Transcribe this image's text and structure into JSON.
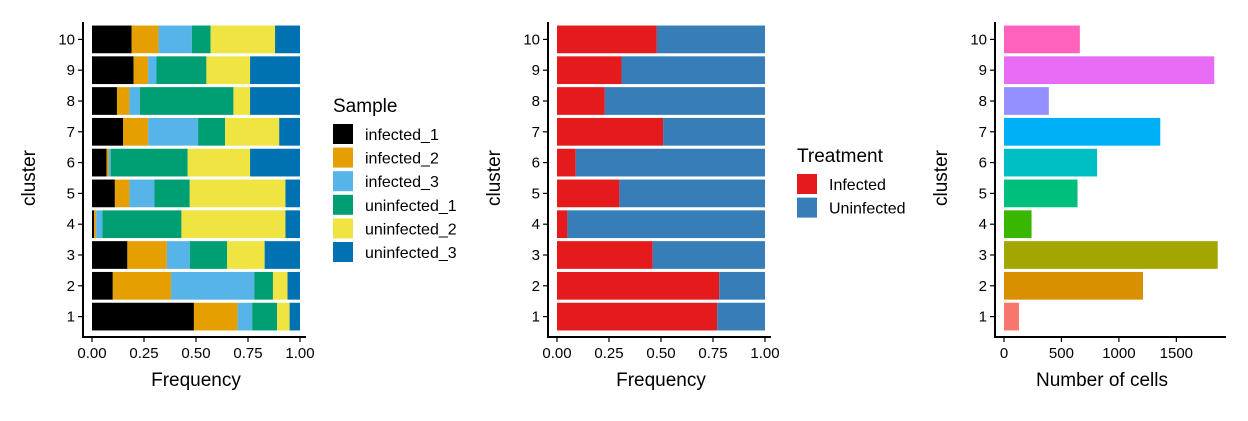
{
  "chart_data": [
    {
      "type": "bar",
      "orientation": "horizontal",
      "stacked": true,
      "normalized": true,
      "xlabel": "Frequency",
      "ylabel": "cluster",
      "xlim": [
        0,
        1
      ],
      "xticks": [
        "0.00",
        "0.25",
        "0.50",
        "0.75",
        "1.00"
      ],
      "categories": [
        "1",
        "2",
        "3",
        "4",
        "5",
        "6",
        "7",
        "8",
        "9",
        "10"
      ],
      "legend": {
        "title": "Sample",
        "position": "right"
      },
      "series": [
        {
          "name": "infected_1",
          "color": "#000000",
          "values": [
            0.49,
            0.1,
            0.17,
            0.01,
            0.11,
            0.07,
            0.15,
            0.12,
            0.2,
            0.19
          ]
        },
        {
          "name": "infected_2",
          "color": "#E69F00",
          "values": [
            0.21,
            0.28,
            0.19,
            0.01,
            0.07,
            0.01,
            0.12,
            0.06,
            0.07,
            0.13
          ]
        },
        {
          "name": "infected_3",
          "color": "#56B4E9",
          "values": [
            0.07,
            0.4,
            0.11,
            0.03,
            0.12,
            0.01,
            0.24,
            0.05,
            0.04,
            0.16
          ]
        },
        {
          "name": "uninfected_1",
          "color": "#009E73",
          "values": [
            0.12,
            0.09,
            0.18,
            0.38,
            0.17,
            0.37,
            0.13,
            0.45,
            0.24,
            0.09
          ]
        },
        {
          "name": "uninfected_2",
          "color": "#F0E442",
          "values": [
            0.06,
            0.07,
            0.18,
            0.5,
            0.46,
            0.3,
            0.26,
            0.08,
            0.21,
            0.31
          ]
        },
        {
          "name": "uninfected_3",
          "color": "#0072B2",
          "values": [
            0.05,
            0.06,
            0.17,
            0.07,
            0.07,
            0.24,
            0.1,
            0.24,
            0.24,
            0.12
          ]
        }
      ]
    },
    {
      "type": "bar",
      "orientation": "horizontal",
      "stacked": true,
      "normalized": true,
      "xlabel": "Frequency",
      "ylabel": "cluster",
      "xlim": [
        0,
        1
      ],
      "xticks": [
        "0.00",
        "0.25",
        "0.50",
        "0.75",
        "1.00"
      ],
      "categories": [
        "1",
        "2",
        "3",
        "4",
        "5",
        "6",
        "7",
        "8",
        "9",
        "10"
      ],
      "legend": {
        "title": "Treatment",
        "position": "right"
      },
      "series": [
        {
          "name": "Infected",
          "color": "#E41A1C",
          "values": [
            0.77,
            0.78,
            0.46,
            0.05,
            0.3,
            0.09,
            0.51,
            0.23,
            0.31,
            0.48
          ]
        },
        {
          "name": "Uninfected",
          "color": "#377EB8",
          "values": [
            0.23,
            0.22,
            0.54,
            0.95,
            0.7,
            0.91,
            0.49,
            0.77,
            0.69,
            0.52
          ]
        }
      ]
    },
    {
      "type": "bar",
      "orientation": "horizontal",
      "xlabel": "Number of cells",
      "ylabel": "cluster",
      "xlim": [
        0,
        1880
      ],
      "xticks": [
        "0",
        "500",
        "1000",
        "1500"
      ],
      "categories": [
        "1",
        "2",
        "3",
        "4",
        "5",
        "6",
        "7",
        "8",
        "9",
        "10"
      ],
      "values": [
        130,
        1210,
        1860,
        240,
        640,
        810,
        1360,
        390,
        1830,
        660
      ],
      "colors": [
        "#F8766D",
        "#D89000",
        "#A3A500",
        "#39B600",
        "#00BF7D",
        "#00BFC4",
        "#00B0F6",
        "#9590FF",
        "#E76BF3",
        "#FF62BC"
      ]
    }
  ]
}
